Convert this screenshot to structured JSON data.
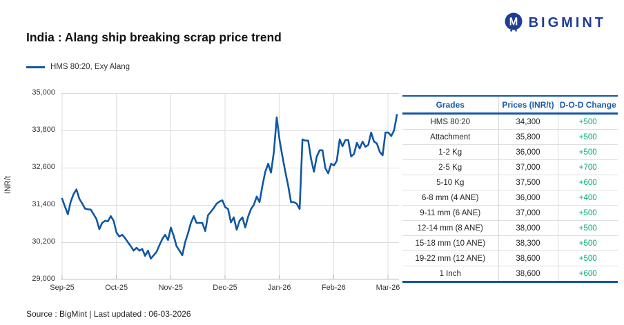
{
  "header": {
    "logo_text": "BIGMINT",
    "title": "India : Alang ship breaking scrap price trend"
  },
  "legend": {
    "label": "HMS 80:20, Exy Alang"
  },
  "footer": {
    "source": "Source : BigMint | Last updated : 06-03-2026"
  },
  "colors": {
    "line": "#1056A4",
    "accent_blue": "#1155A8",
    "header_text_blue": "#1A5AA8",
    "positive_green": "#00AA74",
    "grid": "#dcdcdc",
    "axis": "#b5b5b5",
    "logo_navy": "#1E3D96"
  },
  "table": {
    "headers": [
      "Grades",
      "Prices (INR/t)",
      "D-O-D Change"
    ],
    "rows": [
      [
        "HMS 80:20",
        "34,300",
        "+500"
      ],
      [
        "Attachment",
        "35,800",
        "+500"
      ],
      [
        "1-2 Kg",
        "36,000",
        "+500"
      ],
      [
        "2-5 Kg",
        "37,000",
        "+700"
      ],
      [
        "5-10 Kg",
        "37,500",
        "+600"
      ],
      [
        "6-8 mm (4 ANE)",
        "36,000",
        "+400"
      ],
      [
        "9-11 mm (6 ANE)",
        "37,000",
        "+500"
      ],
      [
        "12-14 mm (8 ANE)",
        "38,000",
        "+500"
      ],
      [
        "15-18 mm (10 ANE)",
        "38,300",
        "+500"
      ],
      [
        "19-22 mm (12 ANE)",
        "38,600",
        "+500"
      ],
      [
        "1 Inch",
        "38,600",
        "+600"
      ]
    ]
  },
  "chart_data": {
    "type": "line",
    "title": "India : Alang ship breaking scrap price trend",
    "ylabel": "INR/t",
    "xlabel": "",
    "ylim": [
      29000,
      35000
    ],
    "y_ticks": [
      35000,
      33800,
      32600,
      31400,
      30200,
      29000
    ],
    "y_tick_labels": [
      "35,000",
      "33,800",
      "32,600",
      "31,400",
      "30,200",
      "29,000"
    ],
    "x_tick_labels": [
      "Sep-25",
      "Oct-25",
      "Nov-25",
      "Dec-25",
      "Jan-26",
      "Feb-26",
      "Mar-26"
    ],
    "grid": true,
    "legend_position": "top-left",
    "series": [
      {
        "name": "HMS 80:20, Exy Alang",
        "color": "#1056A4",
        "values": [
          31600,
          31350,
          31100,
          31500,
          31750,
          31900,
          31600,
          31450,
          31280,
          31260,
          31250,
          31100,
          30950,
          30620,
          30820,
          30890,
          30870,
          31040,
          30890,
          30510,
          30380,
          30440,
          30330,
          30200,
          30070,
          29930,
          30020,
          29930,
          29980,
          29760,
          29930,
          29670,
          29780,
          29890,
          30100,
          30300,
          30440,
          30270,
          30670,
          30400,
          30070,
          29930,
          29780,
          30200,
          30490,
          30820,
          31040,
          30820,
          30820,
          30820,
          30560,
          31070,
          31180,
          31300,
          31440,
          31510,
          31550,
          31330,
          31270,
          30840,
          31000,
          30600,
          30890,
          31000,
          30670,
          31020,
          31270,
          31400,
          31670,
          31490,
          32020,
          32470,
          32730,
          32440,
          33110,
          34220,
          33490,
          32960,
          32470,
          32020,
          31490,
          31490,
          31440,
          31270,
          33510,
          33470,
          33470,
          32890,
          32470,
          32960,
          33160,
          33160,
          32580,
          32420,
          32730,
          32670,
          32820,
          33510,
          33290,
          33490,
          33490,
          32960,
          33040,
          33400,
          33220,
          33440,
          33270,
          33330,
          33730,
          33440,
          33380,
          33110,
          33000,
          33730,
          33730,
          33620,
          33800,
          34300
        ]
      }
    ]
  }
}
